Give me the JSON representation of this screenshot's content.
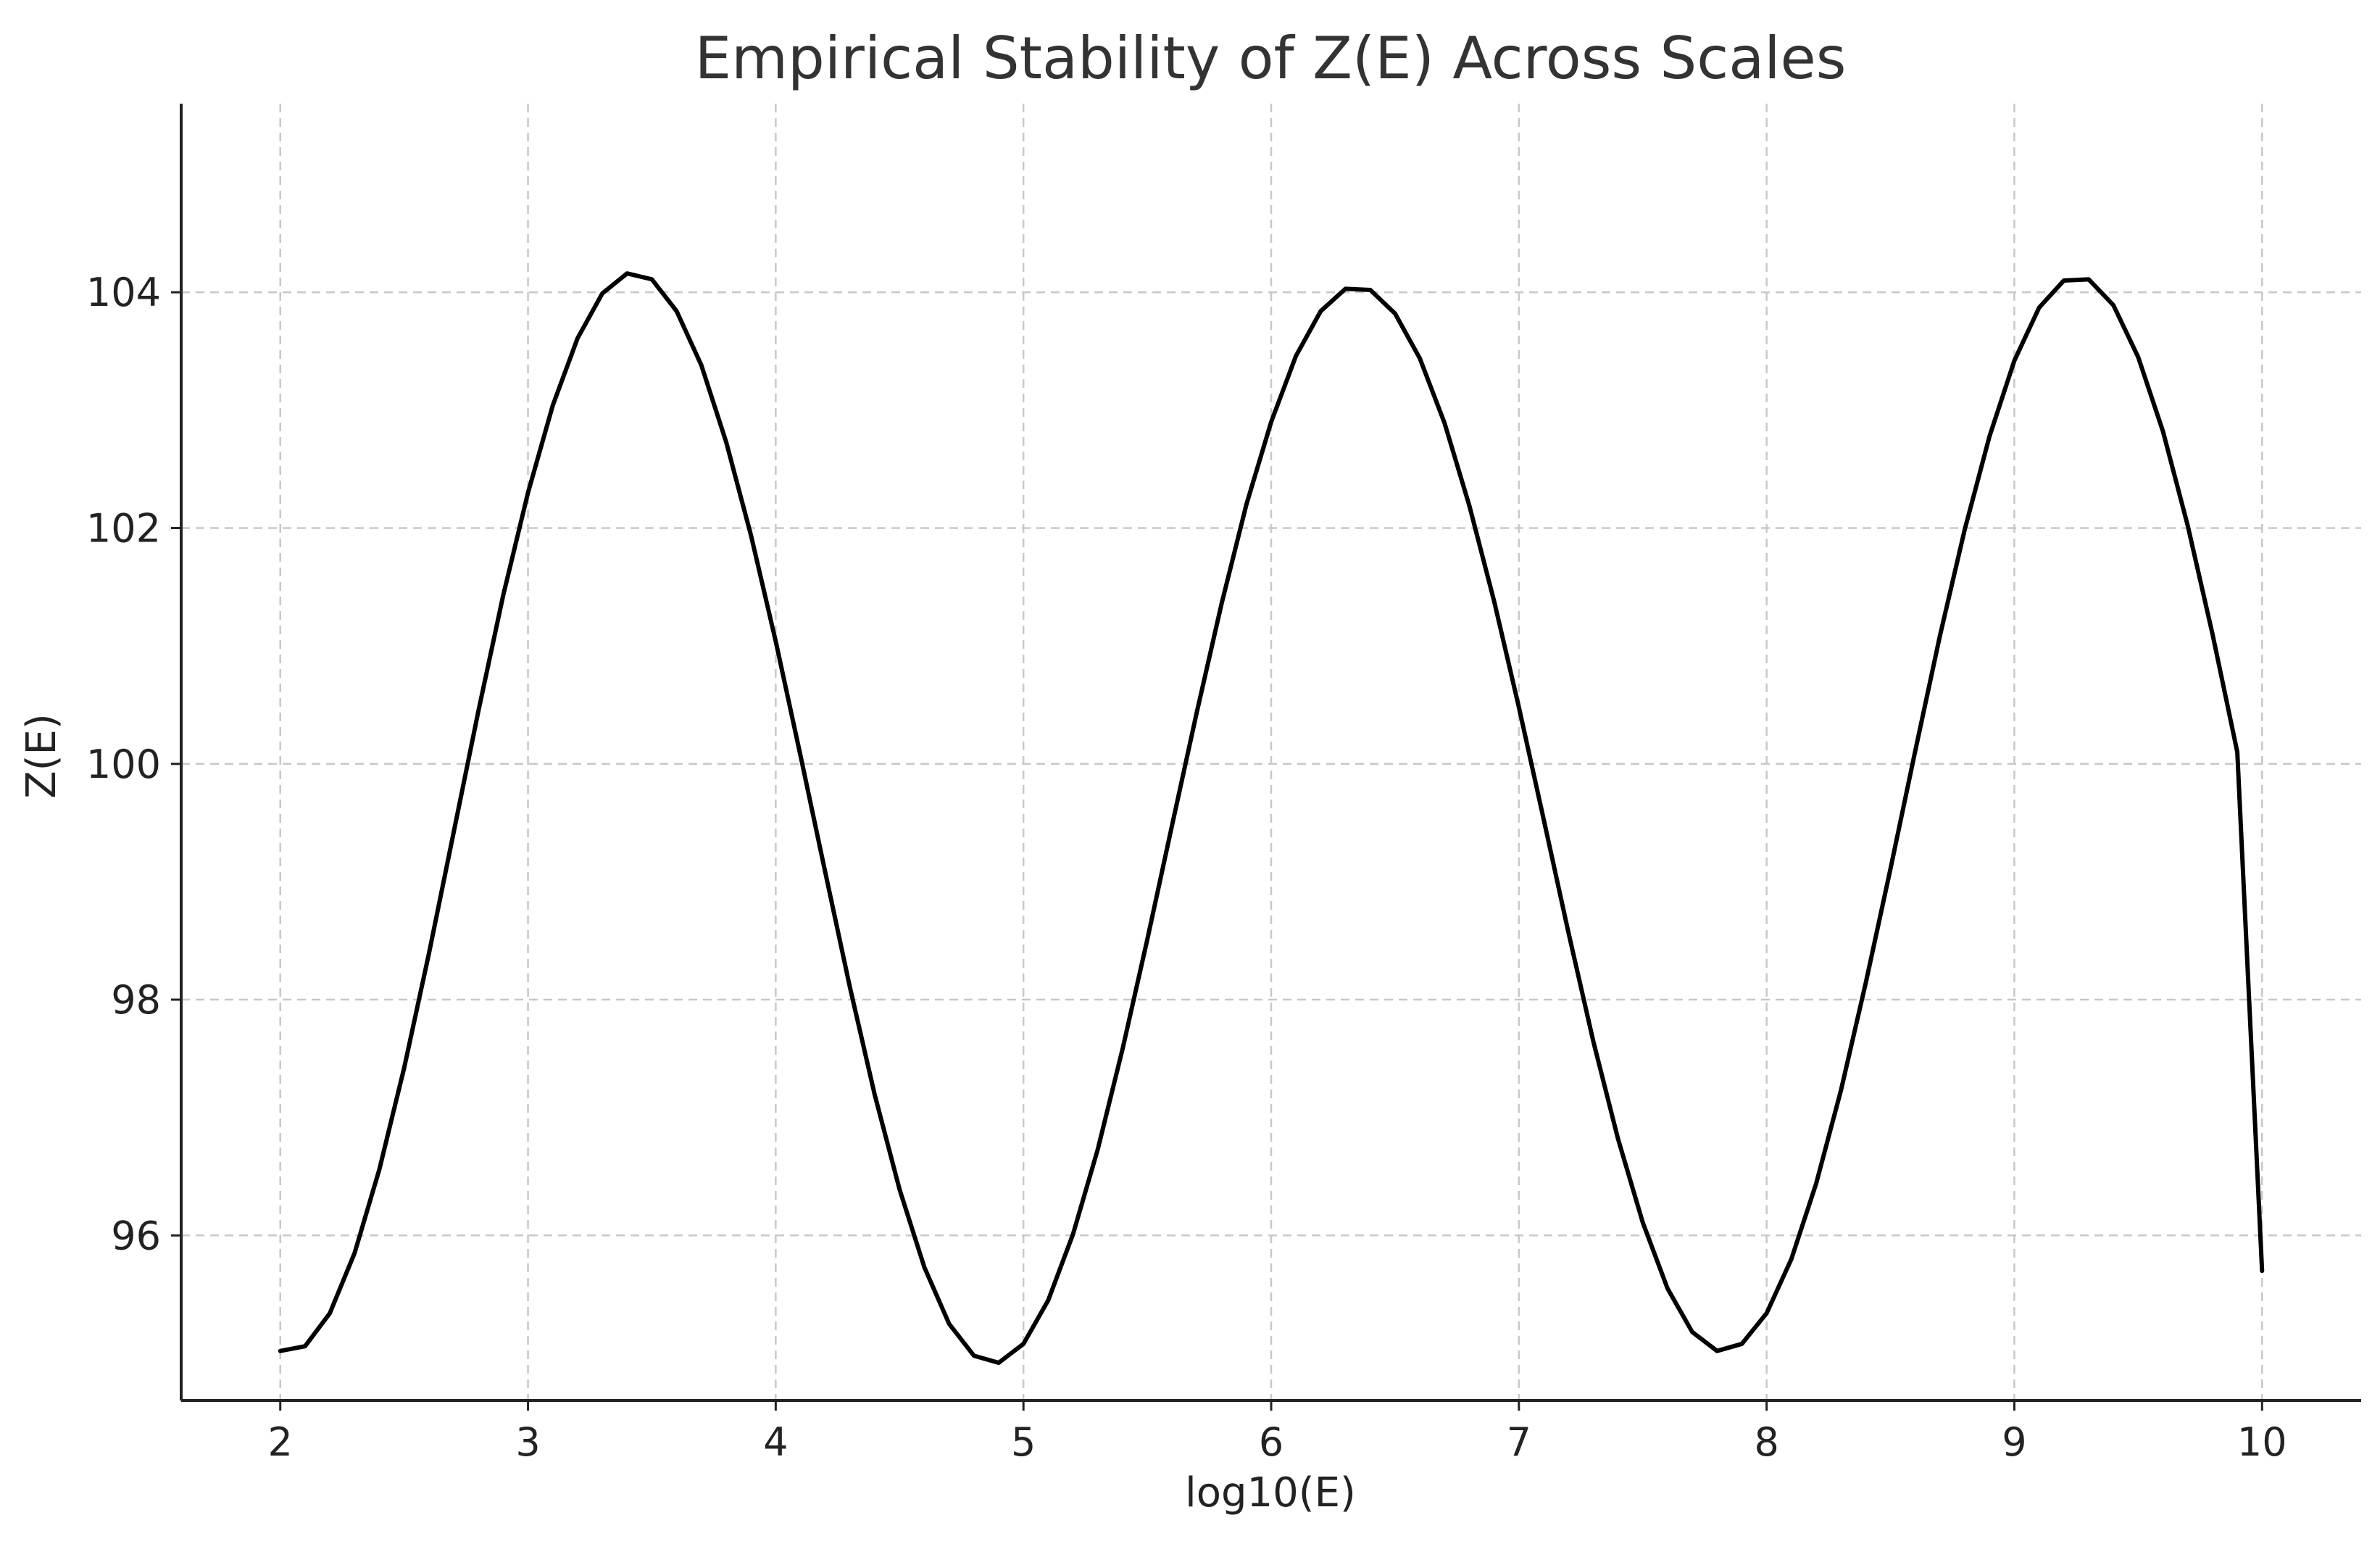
{
  "chart_data": {
    "type": "line",
    "title": "Empirical Stability of Z(E) Across Scales",
    "xlabel": "log10(E)",
    "ylabel": "Z(E)",
    "xlim": [
      1.6,
      10.4
    ],
    "ylim": [
      94.6,
      105.6
    ],
    "xticks": [
      2,
      3,
      4,
      5,
      6,
      7,
      8,
      9,
      10
    ],
    "yticks": [
      96,
      98,
      100,
      102,
      104
    ],
    "xtick_labels": [
      "2",
      "3",
      "4",
      "5",
      "6",
      "7",
      "8",
      "9",
      "10"
    ],
    "ytick_labels": [
      "96",
      "98",
      "100",
      "102",
      "104"
    ],
    "grid": true,
    "line_color": "#000000",
    "series": [
      {
        "x": [
          2.0,
          2.1,
          2.2,
          2.3,
          2.4,
          2.5,
          2.6,
          2.7,
          2.8,
          2.9,
          3.0,
          3.1,
          3.2,
          3.3,
          3.4,
          3.5,
          3.6,
          3.7,
          3.8,
          3.9,
          4.0,
          4.1,
          4.2,
          4.3,
          4.4,
          4.5,
          4.6,
          4.7,
          4.8,
          4.9,
          5.0,
          5.1,
          5.2,
          5.3,
          5.4,
          5.5,
          5.6,
          5.7,
          5.8,
          5.9,
          6.0,
          6.1,
          6.2,
          6.3,
          6.4,
          6.5,
          6.6,
          6.7,
          6.8,
          6.9,
          7.0,
          7.1,
          7.2,
          7.3,
          7.4,
          7.5,
          7.6,
          7.7,
          7.8,
          7.9,
          8.0,
          8.1,
          8.2,
          8.3,
          8.4,
          8.5,
          8.6,
          8.7,
          8.8,
          8.9,
          9.0,
          9.1,
          9.2,
          9.3,
          9.4,
          9.5,
          9.6,
          9.7,
          9.8,
          9.9,
          10.0
        ],
        "y": [
          95.02,
          95.06,
          95.34,
          95.85,
          96.56,
          97.42,
          98.39,
          99.42,
          100.45,
          101.43,
          102.3,
          103.04,
          103.61,
          103.99,
          104.16,
          104.11,
          103.84,
          103.38,
          102.73,
          101.94,
          101.04,
          100.07,
          99.08,
          98.1,
          97.19,
          96.39,
          95.73,
          95.25,
          94.98,
          94.92,
          95.08,
          95.45,
          96.01,
          96.73,
          97.58,
          98.51,
          99.48,
          100.44,
          101.36,
          102.2,
          102.9,
          103.46,
          103.84,
          104.03,
          104.02,
          103.82,
          103.44,
          102.89,
          102.19,
          101.38,
          100.48,
          99.53,
          98.57,
          97.65,
          96.82,
          96.11,
          95.55,
          95.18,
          95.02,
          95.08,
          95.34,
          95.8,
          96.44,
          97.23,
          98.14,
          99.11,
          100.11,
          101.09,
          101.99,
          102.78,
          103.42,
          103.87,
          104.1,
          104.11,
          103.89,
          103.45,
          102.82,
          102.02,
          101.1,
          100.1,
          95.7
        ]
      }
    ]
  }
}
